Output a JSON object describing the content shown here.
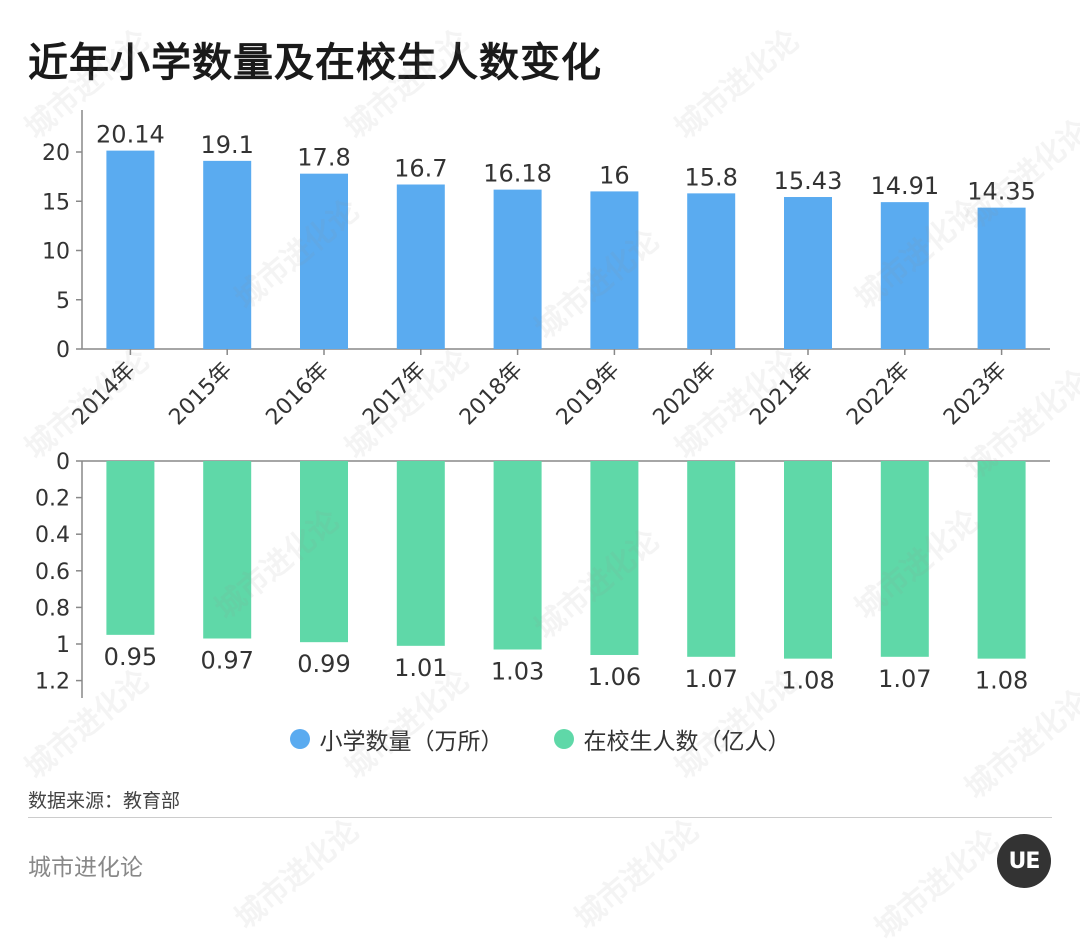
{
  "title": "近年小学数量及在校生人数变化",
  "chart_data": {
    "type": "bar",
    "categories": [
      "2014年",
      "2015年",
      "2016年",
      "2017年",
      "2018年",
      "2019年",
      "2020年",
      "2021年",
      "2022年",
      "2023年"
    ],
    "series": [
      {
        "name": "小学数量（万所）",
        "color": "#5aabf0",
        "values": [
          20.14,
          19.1,
          17.8,
          16.7,
          16.18,
          16,
          15.8,
          15.43,
          14.91,
          14.35
        ],
        "labels": [
          "20.14",
          "19.1",
          "17.8",
          "16.7",
          "16.18",
          "16",
          "15.8",
          "15.43",
          "14.91",
          "14.35"
        ]
      },
      {
        "name": "在校生人数（亿人）",
        "color": "#5fd8a8",
        "values": [
          0.95,
          0.97,
          0.99,
          1.01,
          1.03,
          1.06,
          1.07,
          1.08,
          1.07,
          1.08
        ],
        "labels": [
          "0.95",
          "0.97",
          "0.99",
          "1.01",
          "1.03",
          "1.06",
          "1.07",
          "1.08",
          "1.07",
          "1.08"
        ]
      }
    ],
    "top_axis": {
      "ylim": [
        0,
        20
      ],
      "ticks": [
        "0",
        "5",
        "10",
        "15",
        "20"
      ],
      "tick_values": [
        0,
        5,
        10,
        15,
        20
      ]
    },
    "bottom_axis": {
      "ylim": [
        0,
        1.2
      ],
      "inverted": true,
      "ticks": [
        "0",
        "0.2",
        "0.4",
        "0.6",
        "0.8",
        "1",
        "1.2"
      ],
      "tick_values": [
        0,
        0.2,
        0.4,
        0.6,
        0.8,
        1,
        1.2
      ]
    }
  },
  "legend": [
    {
      "label": "小学数量（万所）",
      "color": "#5aabf0"
    },
    {
      "label": "在校生人数（亿人）",
      "color": "#5fd8a8"
    }
  ],
  "source": "数据来源：教育部",
  "footer_brand": "城市进化论",
  "logo_text": "UE",
  "watermark_text": "城市进化论"
}
